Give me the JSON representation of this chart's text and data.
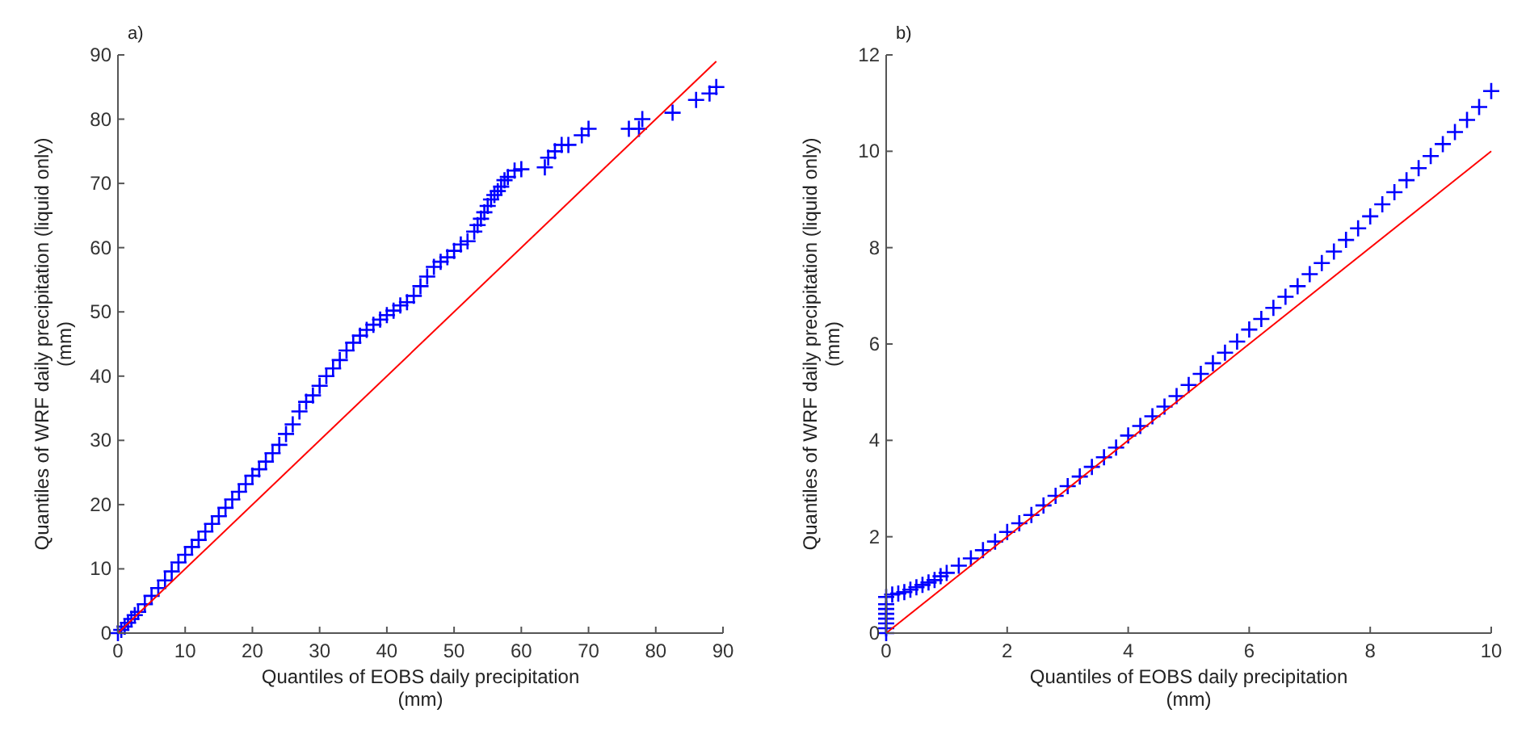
{
  "chart_data": [
    {
      "type": "scatter",
      "title": "a)",
      "xlabel": "Quantiles of EOBS daily precipitation\n(mm)",
      "ylabel": "Quantiles of WRF daily precipitation (liquid only)\n(mm)",
      "xlim": [
        0,
        90
      ],
      "ylim": [
        0,
        90
      ],
      "xticks": [
        0,
        10,
        20,
        30,
        40,
        50,
        60,
        70,
        80,
        90
      ],
      "yticks": [
        0,
        10,
        20,
        30,
        40,
        50,
        60,
        70,
        80,
        90
      ],
      "grid": false,
      "series": [
        {
          "color": "#0000ff",
          "marker": "cross",
          "x": [
            0,
            0.5,
            1,
            1.5,
            2,
            2.5,
            3,
            4,
            5,
            6,
            7,
            8,
            9,
            10,
            11,
            12,
            13,
            14,
            15,
            16,
            17,
            18,
            19,
            20,
            21,
            22,
            23,
            24,
            25,
            26,
            27,
            28,
            29,
            30,
            31,
            32,
            33,
            34,
            35,
            36,
            37,
            38,
            39,
            40,
            41,
            42,
            43,
            44,
            45,
            46,
            47,
            48,
            49,
            50,
            51,
            52,
            53,
            53.5,
            54,
            54.5,
            55,
            55.5,
            56,
            56.5,
            57,
            57.5,
            58,
            59,
            60,
            63.5,
            64,
            65,
            66,
            67,
            69,
            70,
            76,
            77.5,
            78,
            82.5,
            86,
            88,
            89
          ],
          "values": [
            0,
            0.5,
            1,
            1.6,
            2.2,
            2.8,
            3.3,
            4.5,
            5.8,
            7,
            8.2,
            9.6,
            11,
            12.2,
            13.4,
            14.5,
            15.8,
            17,
            18.2,
            19.5,
            20.8,
            22,
            23.2,
            24.5,
            25.5,
            26.7,
            28,
            29.3,
            31,
            32.5,
            34.5,
            36,
            37,
            38.5,
            40,
            41.2,
            42.5,
            44,
            45.2,
            46.3,
            47.2,
            48,
            48.8,
            49.5,
            50.2,
            51,
            51.5,
            52.5,
            54,
            55.5,
            57,
            57.8,
            58.5,
            59.5,
            60.5,
            61,
            62.5,
            63.5,
            64.5,
            65.5,
            66.5,
            67.5,
            68.2,
            68.8,
            69.5,
            70.5,
            71,
            72,
            72.2,
            72.5,
            74,
            75,
            76,
            76,
            77.5,
            78.5,
            78.5,
            78.5,
            80,
            81,
            83,
            84,
            85
          ]
        },
        {
          "type": "line",
          "color": "#ff0000",
          "x": [
            0,
            89
          ],
          "values": [
            0,
            89
          ]
        }
      ]
    },
    {
      "type": "scatter",
      "title": "b)",
      "xlabel": "Quantiles of EOBS daily precipitation\n(mm)",
      "ylabel": "Quantiles of WRF daily precipitation (liquid only)\n(mm)",
      "xlim": [
        0,
        10
      ],
      "ylim": [
        0,
        12
      ],
      "xticks": [
        0,
        2,
        4,
        6,
        8,
        10
      ],
      "yticks": [
        0,
        2,
        4,
        6,
        8,
        10,
        12
      ],
      "grid": false,
      "series": [
        {
          "color": "#0000ff",
          "marker": "cross",
          "x": [
            0,
            0,
            0,
            0,
            0,
            0,
            0,
            0,
            0.1,
            0.2,
            0.3,
            0.4,
            0.5,
            0.6,
            0.7,
            0.8,
            0.9,
            1,
            1.2,
            1.4,
            1.6,
            1.8,
            2,
            2.2,
            2.4,
            2.6,
            2.8,
            3,
            3.2,
            3.4,
            3.6,
            3.8,
            4,
            4.2,
            4.4,
            4.6,
            4.8,
            5,
            5.2,
            5.4,
            5.6,
            5.8,
            6,
            6.2,
            6.4,
            6.6,
            6.8,
            7,
            7.2,
            7.4,
            7.6,
            7.8,
            8,
            8.2,
            8.4,
            8.6,
            8.8,
            9,
            9.2,
            9.4,
            9.6,
            9.8,
            10
          ],
          "values": [
            0,
            0.1,
            0.2,
            0.3,
            0.4,
            0.5,
            0.6,
            0.75,
            0.8,
            0.82,
            0.85,
            0.9,
            0.95,
            1,
            1.05,
            1.1,
            1.18,
            1.25,
            1.4,
            1.55,
            1.72,
            1.9,
            2.1,
            2.28,
            2.45,
            2.65,
            2.85,
            3.05,
            3.25,
            3.45,
            3.65,
            3.85,
            4.1,
            4.3,
            4.5,
            4.7,
            4.92,
            5.15,
            5.38,
            5.6,
            5.82,
            6.05,
            6.3,
            6.52,
            6.75,
            6.98,
            7.2,
            7.45,
            7.68,
            7.92,
            8.16,
            8.4,
            8.65,
            8.9,
            9.15,
            9.4,
            9.65,
            9.9,
            10.15,
            10.4,
            10.65,
            10.92,
            11.25
          ]
        },
        {
          "type": "line",
          "color": "#ff0000",
          "x": [
            0,
            10
          ],
          "values": [
            0,
            10
          ]
        }
      ]
    }
  ]
}
